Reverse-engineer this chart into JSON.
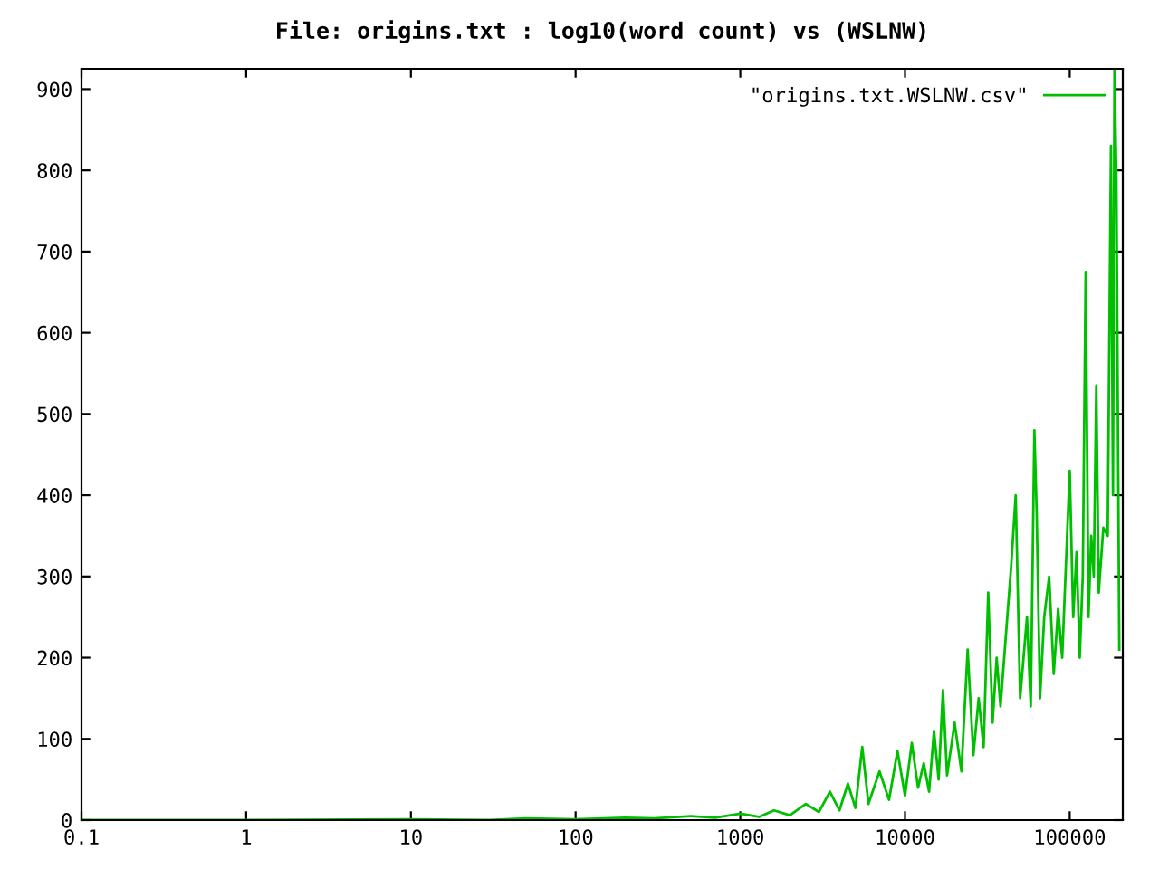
{
  "chart_data": {
    "type": "line",
    "title": "File: origins.txt : log10(word count) vs (WSLNW)",
    "log": "x",
    "xlim": [
      0.1,
      210000
    ],
    "xticks": [
      0.1,
      1,
      10,
      100,
      1000,
      10000,
      100000
    ],
    "ylim": [
      0,
      925
    ],
    "yticks": [
      0,
      100,
      200,
      300,
      400,
      500,
      600,
      700,
      800,
      900
    ],
    "legend": "top right",
    "grid": false,
    "series": [
      {
        "name": "\"origins.txt.WSLNW.csv\"",
        "color": "#00bf00",
        "x": [
          0.1,
          1,
          10,
          30,
          50,
          100,
          200,
          300,
          500,
          700,
          1000,
          1300,
          1600,
          2000,
          2500,
          3000,
          3500,
          4000,
          4500,
          5000,
          5500,
          6000,
          7000,
          8000,
          9000,
          10000,
          11000,
          12000,
          13000,
          14000,
          15000,
          16000,
          17000,
          18000,
          20000,
          22000,
          24000,
          26000,
          28000,
          30000,
          32000,
          34000,
          36000,
          38000,
          40000,
          44000,
          47000,
          50000,
          55000,
          58000,
          61000,
          63000,
          66000,
          70000,
          75000,
          80000,
          85000,
          90000,
          100000,
          105000,
          110000,
          115000,
          120000,
          125000,
          130000,
          135000,
          140000,
          145000,
          150000,
          160000,
          170000,
          178000,
          183000,
          187000,
          192000,
          196000,
          200000
        ],
        "values": [
          0,
          0,
          1,
          0,
          2,
          1,
          3,
          2,
          5,
          3,
          8,
          4,
          12,
          6,
          20,
          10,
          35,
          12,
          45,
          15,
          90,
          20,
          60,
          25,
          85,
          30,
          95,
          40,
          70,
          35,
          110,
          50,
          160,
          55,
          120,
          60,
          210,
          80,
          150,
          90,
          280,
          120,
          200,
          140,
          200,
          310,
          400,
          150,
          250,
          140,
          480,
          380,
          150,
          250,
          300,
          180,
          260,
          200,
          430,
          250,
          330,
          200,
          300,
          675,
          250,
          350,
          300,
          535,
          280,
          360,
          350,
          830,
          400,
          925,
          790,
          500,
          210
        ]
      }
    ]
  }
}
